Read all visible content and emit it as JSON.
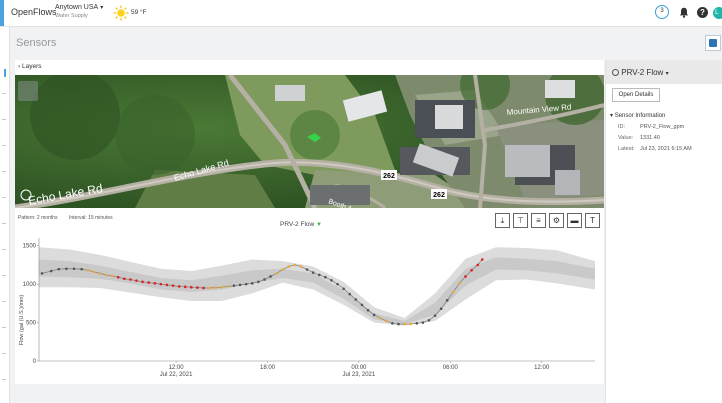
{
  "header": {
    "brand": "OpenFlows",
    "location": "Anytown USA",
    "location_sub": "Water Supply",
    "temperature": "59 °F",
    "notifications_count": "3",
    "help_label": "?",
    "avatar_initial": "L"
  },
  "page": {
    "title": "Sensors",
    "layers_label": "Layers"
  },
  "map": {
    "labels": {
      "echo_lake_1": "Echo Lake Rd",
      "echo_lake_2": "Echo Lake Rd",
      "mountain_view": "Mountain View Rd",
      "booth": "Booth A",
      "route_1": "262",
      "route_2": "262"
    }
  },
  "chart": {
    "pattern_label": "Pattern: 2 months",
    "interval_label": "Interval: 15 minutes",
    "title": "PRV-2 Flow"
  },
  "chart_data": {
    "type": "line",
    "title": "PRV-2 Flow",
    "ylabel": "Flow (gal (U.S.)/min)",
    "xlabel": "",
    "ylim": [
      0,
      1600
    ],
    "y_ticks": [
      0,
      500,
      1000,
      1500
    ],
    "x_range_hours": [
      3,
      39.5
    ],
    "x_ticks": [
      {
        "hour": 12,
        "label": "12:00",
        "date": "Jul 22, 2021"
      },
      {
        "hour": 18,
        "label": "18:00",
        "date": ""
      },
      {
        "hour": 24,
        "label": "00:00",
        "date": "Jul 23, 2021"
      },
      {
        "hour": 30,
        "label": "06:00",
        "date": ""
      },
      {
        "hour": 36,
        "label": "12:00",
        "date": ""
      }
    ],
    "band_outer": {
      "hours": [
        3,
        5,
        7,
        9,
        11,
        13,
        15,
        17,
        19,
        21,
        23,
        25,
        27,
        29,
        31,
        33,
        35,
        37,
        39.5
      ],
      "upper": [
        1480,
        1450,
        1380,
        1290,
        1200,
        1170,
        1240,
        1320,
        1300,
        1230,
        1030,
        700,
        560,
        880,
        1330,
        1480,
        1470,
        1440,
        1300
      ],
      "lower": [
        960,
        960,
        950,
        890,
        830,
        780,
        780,
        880,
        1020,
        930,
        730,
        500,
        460,
        520,
        800,
        1050,
        1060,
        1010,
        930
      ]
    },
    "band_inner": {
      "upper": [
        1320,
        1300,
        1240,
        1160,
        1080,
        1050,
        1110,
        1180,
        1200,
        1140,
        920,
        620,
        520,
        760,
        1200,
        1350,
        1330,
        1300,
        1200
      ],
      "lower": [
        1100,
        1090,
        1070,
        1010,
        930,
        900,
        930,
        1010,
        1080,
        1020,
        810,
        540,
        480,
        600,
        980,
        1190,
        1180,
        1140,
        1060
      ]
    },
    "series": [
      {
        "name": "PRV-2 Flow",
        "points": [
          [
            3.2,
            1140,
            "gray"
          ],
          [
            3.8,
            1170,
            "gray"
          ],
          [
            4.3,
            1195,
            "gray"
          ],
          [
            4.8,
            1200,
            "gray"
          ],
          [
            5.3,
            1200,
            "gray"
          ],
          [
            5.8,
            1195,
            "gray"
          ],
          [
            6.2,
            1180,
            "orange"
          ],
          [
            6.6,
            1160,
            "orange"
          ],
          [
            7.0,
            1140,
            "orange"
          ],
          [
            7.4,
            1120,
            "orange"
          ],
          [
            7.8,
            1105,
            "orange"
          ],
          [
            8.2,
            1090,
            "red"
          ],
          [
            8.6,
            1070,
            "red"
          ],
          [
            9.0,
            1060,
            "red"
          ],
          [
            9.4,
            1045,
            "red"
          ],
          [
            9.8,
            1030,
            "red"
          ],
          [
            10.2,
            1020,
            "red"
          ],
          [
            10.6,
            1010,
            "red"
          ],
          [
            11.0,
            1000,
            "red"
          ],
          [
            11.4,
            990,
            "red"
          ],
          [
            11.8,
            980,
            "red"
          ],
          [
            12.2,
            970,
            "red"
          ],
          [
            12.6,
            965,
            "red"
          ],
          [
            13.0,
            960,
            "red"
          ],
          [
            13.4,
            955,
            "red"
          ],
          [
            13.8,
            950,
            "red"
          ],
          [
            14.2,
            950,
            "orange"
          ],
          [
            14.6,
            955,
            "orange"
          ],
          [
            15.0,
            960,
            "orange"
          ],
          [
            15.4,
            970,
            "orange"
          ],
          [
            15.8,
            980,
            "gray"
          ],
          [
            16.2,
            990,
            "gray"
          ],
          [
            16.6,
            1000,
            "gray"
          ],
          [
            17.0,
            1010,
            "gray"
          ],
          [
            17.4,
            1030,
            "gray"
          ],
          [
            17.8,
            1060,
            "gray"
          ],
          [
            18.2,
            1100,
            "gray"
          ],
          [
            18.6,
            1140,
            "orange"
          ],
          [
            19.0,
            1190,
            "orange"
          ],
          [
            19.4,
            1230,
            "orange"
          ],
          [
            19.8,
            1250,
            "orange"
          ],
          [
            20.2,
            1230,
            "orange"
          ],
          [
            20.6,
            1190,
            "gray"
          ],
          [
            21.0,
            1150,
            "gray"
          ],
          [
            21.4,
            1120,
            "gray"
          ],
          [
            21.8,
            1090,
            "gray"
          ],
          [
            22.2,
            1050,
            "gray"
          ],
          [
            22.6,
            1000,
            "gray"
          ],
          [
            23.0,
            940,
            "gray"
          ],
          [
            23.4,
            870,
            "gray"
          ],
          [
            23.8,
            800,
            "gray"
          ],
          [
            24.2,
            730,
            "gray"
          ],
          [
            24.6,
            660,
            "gray"
          ],
          [
            25.0,
            600,
            "gray"
          ],
          [
            25.4,
            560,
            "orange"
          ],
          [
            25.8,
            520,
            "orange"
          ],
          [
            26.2,
            490,
            "gray"
          ],
          [
            26.6,
            480,
            "gray"
          ],
          [
            27.0,
            480,
            "orange"
          ],
          [
            27.4,
            482,
            "orange"
          ],
          [
            27.8,
            490,
            "gray"
          ],
          [
            28.2,
            500,
            "gray"
          ],
          [
            28.6,
            530,
            "gray"
          ],
          [
            29.0,
            590,
            "gray"
          ],
          [
            29.4,
            680,
            "gray"
          ],
          [
            29.8,
            790,
            "gray"
          ],
          [
            30.2,
            900,
            "orange"
          ],
          [
            30.6,
            1010,
            "orange"
          ],
          [
            31.0,
            1100,
            "red"
          ],
          [
            31.4,
            1180,
            "red"
          ],
          [
            31.8,
            1250,
            "red"
          ],
          [
            32.1,
            1320,
            "red"
          ]
        ]
      }
    ]
  },
  "right_panel": {
    "title": "PRV-2 Flow",
    "open_details": "Open Details",
    "section_title": "Sensor Information",
    "rows": [
      {
        "label": "ID:",
        "value": "PRV-2_Flow_gpm"
      },
      {
        "label": "Value:",
        "value": "1331.40"
      },
      {
        "label": "Latest:",
        "value": "Jul 23, 2021 6:15 AM"
      }
    ]
  },
  "colors": {
    "accent": "#3aa0d8",
    "gray_point": "#555555",
    "orange_point": "#f0a830",
    "red_point": "#e02020",
    "band_outer": "#dcdcdc",
    "band_inner": "#c4c4c4"
  }
}
